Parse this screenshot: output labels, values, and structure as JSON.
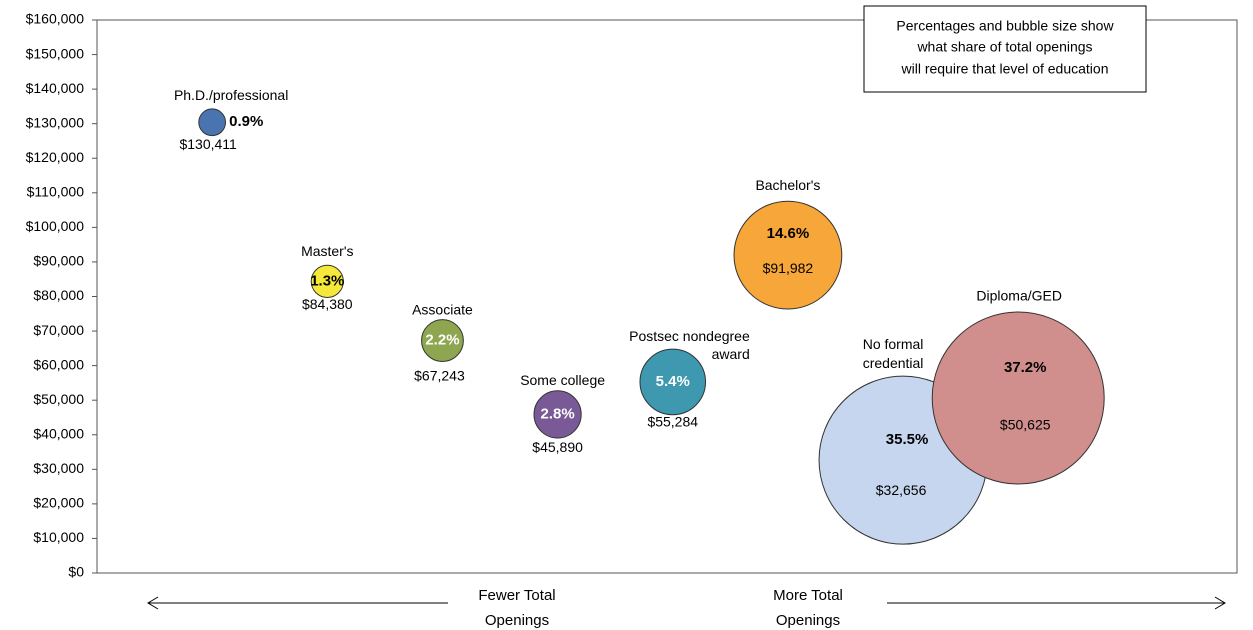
{
  "chart_data": {
    "type": "bubble",
    "labels": [
      "Ph.D./professional",
      "Master's",
      "Associate",
      "Some college",
      "Postsec nondegree award",
      "Bachelor's",
      "No formal credential",
      "Diploma/GED"
    ],
    "x": [
      1,
      2,
      3,
      4,
      5,
      6,
      7,
      8
    ],
    "values": [
      130411,
      84380,
      67243,
      45890,
      55284,
      91982,
      32656,
      50625
    ],
    "value_labels": [
      "$130,411",
      "$84,380",
      "$67,243",
      "$45,890",
      "$55,284",
      "$91,982",
      "$32,656",
      "$50,625"
    ],
    "sizes": [
      0.9,
      1.3,
      2.2,
      2.8,
      5.4,
      14.6,
      35.5,
      37.2
    ],
    "size_labels": [
      "0.9%",
      "1.3%",
      "2.2%",
      "2.8%",
      "5.4%",
      "14.6%",
      "35.5%",
      "37.2%"
    ],
    "colors": [
      "#4a74b0",
      "#f5e83a",
      "#8ea64f",
      "#7a5a96",
      "#3d98b0",
      "#f7a73a",
      "#c6d6ee",
      "#d08f8c"
    ],
    "xlim": [
      0,
      9.9
    ],
    "ylim": [
      0,
      160000
    ],
    "yticks": [
      {
        "value": 0,
        "label": "$0"
      },
      {
        "value": 10000,
        "label": "$10,000"
      },
      {
        "value": 20000,
        "label": "$20,000"
      },
      {
        "value": 30000,
        "label": "$30,000"
      },
      {
        "value": 40000,
        "label": "$40,000"
      },
      {
        "value": 50000,
        "label": "$50,000"
      },
      {
        "value": 60000,
        "label": "$60,000"
      },
      {
        "value": 70000,
        "label": "$70,000"
      },
      {
        "value": 80000,
        "label": "$80,000"
      },
      {
        "value": 90000,
        "label": "$90,000"
      },
      {
        "value": 100000,
        "label": "$100,000"
      },
      {
        "value": 110000,
        "label": "$110,000"
      },
      {
        "value": 120000,
        "label": "$120,000"
      },
      {
        "value": 130000,
        "label": "$130,000"
      },
      {
        "value": 140000,
        "label": "$140,000"
      },
      {
        "value": 150000,
        "label": "$150,000"
      },
      {
        "value": 160000,
        "label": "$160,000"
      }
    ],
    "annotation": [
      "Percentages and bubble size show",
      "what share of total openings",
      "will require that level of education"
    ],
    "x_label_left": "Fewer Total Openings",
    "x_label_right": "More Total Openings"
  }
}
